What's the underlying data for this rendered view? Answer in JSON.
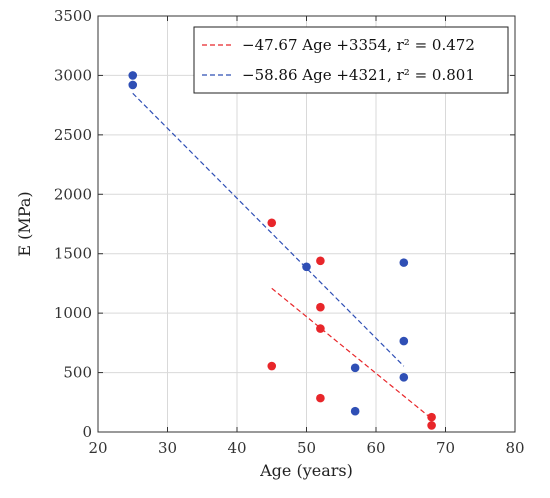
{
  "chart_data": {
    "type": "scatter",
    "title": "",
    "xlabel": "Age (years)",
    "ylabel": "E (MPa)",
    "xlim": [
      20,
      80
    ],
    "ylim": [
      0,
      3500
    ],
    "x_ticks": [
      20,
      30,
      40,
      50,
      60,
      70,
      80
    ],
    "y_ticks": [
      0,
      500,
      1000,
      1500,
      2000,
      2500,
      3000,
      3500
    ],
    "grid": true,
    "legend_position": "top-right",
    "series": [
      {
        "color": "#e8262a",
        "points": [
          {
            "x": 45,
            "y": 1760
          },
          {
            "x": 45,
            "y": 555
          },
          {
            "x": 52,
            "y": 1440
          },
          {
            "x": 52,
            "y": 1050
          },
          {
            "x": 52,
            "y": 870
          },
          {
            "x": 52,
            "y": 285
          },
          {
            "x": 68,
            "y": 125
          },
          {
            "x": 68,
            "y": 55
          }
        ],
        "fit": {
          "label": "−47.67 Age +3354, r² = 0.472",
          "slope": -47.67,
          "intercept": 3354,
          "x_range": [
            45,
            68
          ]
        }
      },
      {
        "color": "#2f4fb5",
        "points": [
          {
            "x": 25,
            "y": 3000
          },
          {
            "x": 25,
            "y": 2920
          },
          {
            "x": 50,
            "y": 1390
          },
          {
            "x": 57,
            "y": 540
          },
          {
            "x": 57,
            "y": 175
          },
          {
            "x": 64,
            "y": 1425
          },
          {
            "x": 64,
            "y": 765
          },
          {
            "x": 64,
            "y": 460
          }
        ],
        "fit": {
          "label": "−58.86 Age +4321, r² = 0.801",
          "slope": -58.86,
          "intercept": 4321,
          "x_range": [
            25,
            64
          ]
        }
      }
    ]
  }
}
